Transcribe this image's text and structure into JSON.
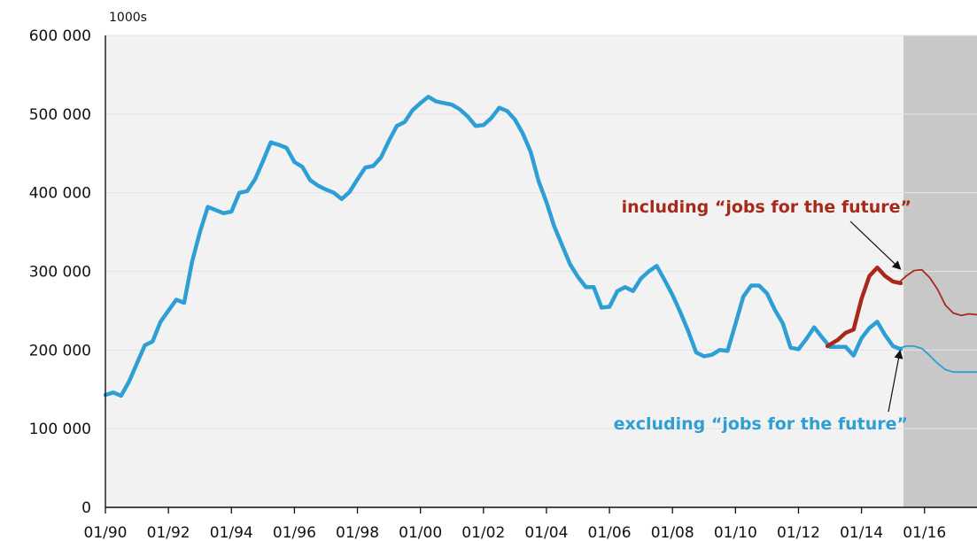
{
  "chart_data": {
    "type": "line",
    "unit_label": "1000s",
    "ylim": [
      0,
      600000
    ],
    "y_ticks": [
      0,
      100000,
      200000,
      300000,
      400000,
      500000,
      600000
    ],
    "y_tick_labels": [
      "0",
      "100 000",
      "200 000",
      "300 000",
      "400 000",
      "500 000",
      "600 000"
    ],
    "xlim": [
      "1990-01",
      "2017-09"
    ],
    "x_ticks": [
      "1990-01",
      "1992-01",
      "1994-01",
      "1996-01",
      "1998-01",
      "2000-01",
      "2002-01",
      "2004-01",
      "2006-01",
      "2008-01",
      "2010-01",
      "2012-01",
      "2014-01",
      "2016-01"
    ],
    "x_tick_labels": [
      "01/90",
      "01/92",
      "01/94",
      "01/96",
      "01/98",
      "01/00",
      "01/02",
      "01/04",
      "01/06",
      "01/08",
      "01/10",
      "01/12",
      "01/14",
      "01/16"
    ],
    "forecast_start": "2015-05",
    "grid": true,
    "colors": {
      "plot_background": "#f2f2f2",
      "forecast_shade": "#c8c8c8",
      "gridline": "#e4e4e4",
      "series_excluding": "#2e9fd4",
      "series_including": "#a8291b",
      "arrow": "#111111"
    },
    "series": [
      {
        "name": "excluding “jobs for the future”",
        "key": "excluding",
        "x": [
          "1990-01",
          "1990-04",
          "1990-07",
          "1990-10",
          "1991-01",
          "1991-04",
          "1991-07",
          "1991-10",
          "1992-01",
          "1992-04",
          "1992-07",
          "1992-10",
          "1993-01",
          "1993-04",
          "1993-07",
          "1993-10",
          "1994-01",
          "1994-04",
          "1994-07",
          "1994-10",
          "1995-01",
          "1995-04",
          "1995-07",
          "1995-10",
          "1996-01",
          "1996-04",
          "1996-07",
          "1996-10",
          "1997-01",
          "1997-04",
          "1997-07",
          "1997-10",
          "1998-01",
          "1998-04",
          "1998-07",
          "1998-10",
          "1999-01",
          "1999-04",
          "1999-07",
          "1999-10",
          "2000-01",
          "2000-04",
          "2000-07",
          "2000-10",
          "2001-01",
          "2001-04",
          "2001-07",
          "2001-10",
          "2002-01",
          "2002-04",
          "2002-07",
          "2002-10",
          "2003-01",
          "2003-04",
          "2003-07",
          "2003-10",
          "2004-01",
          "2004-04",
          "2004-07",
          "2004-10",
          "2005-01",
          "2005-04",
          "2005-07",
          "2005-10",
          "2006-01",
          "2006-04",
          "2006-07",
          "2006-10",
          "2007-01",
          "2007-04",
          "2007-07",
          "2007-10",
          "2008-01",
          "2008-04",
          "2008-07",
          "2008-10",
          "2009-01",
          "2009-04",
          "2009-07",
          "2009-10",
          "2010-01",
          "2010-04",
          "2010-07",
          "2010-10",
          "2011-01",
          "2011-04",
          "2011-07",
          "2011-10",
          "2012-01",
          "2012-04",
          "2012-07",
          "2012-10",
          "2013-01",
          "2013-04",
          "2013-07",
          "2013-10",
          "2014-01",
          "2014-04",
          "2014-07",
          "2014-10",
          "2015-01",
          "2015-04"
        ],
        "values": [
          143000,
          146000,
          142000,
          160000,
          183000,
          206000,
          211000,
          236000,
          250000,
          264000,
          260000,
          312000,
          350000,
          382000,
          378000,
          374000,
          376000,
          400000,
          402000,
          417000,
          440000,
          464000,
          461000,
          457000,
          439000,
          433000,
          416000,
          409000,
          404000,
          400000,
          392000,
          401000,
          417000,
          432000,
          434000,
          445000,
          466000,
          485000,
          490000,
          505000,
          514000,
          522000,
          516000,
          514000,
          512000,
          506000,
          497000,
          485000,
          486000,
          495000,
          508000,
          504000,
          493000,
          475000,
          452000,
          415000,
          388000,
          357000,
          333000,
          309000,
          293000,
          280000,
          280000,
          254000,
          255000,
          275000,
          280000,
          275000,
          291000,
          300000,
          307000,
          289000,
          270000,
          248000,
          224000,
          197000,
          192000,
          194000,
          200000,
          199000,
          233000,
          268000,
          282000,
          282000,
          272000,
          251000,
          234000,
          203000,
          201000,
          214000,
          229000,
          216000,
          204000,
          204000,
          204000,
          193000,
          215000,
          228000,
          236000,
          219000,
          205000,
          201000
        ]
      },
      {
        "name": "including “jobs for the future”",
        "key": "including",
        "x": [
          "2012-12",
          "2013-04",
          "2013-07",
          "2013-10",
          "2014-01",
          "2014-04",
          "2014-07",
          "2014-10",
          "2015-01",
          "2015-04"
        ],
        "values": [
          205000,
          213000,
          222000,
          226000,
          265000,
          294000,
          305000,
          294000,
          287000,
          285000
        ]
      }
    ],
    "forecast_series": [
      {
        "key": "excluding",
        "x": [
          "2015-04",
          "2015-06",
          "2015-09",
          "2015-12",
          "2016-03",
          "2016-06",
          "2016-09",
          "2016-12",
          "2017-03",
          "2017-06",
          "2017-09"
        ],
        "values": [
          203000,
          205000,
          205000,
          202000,
          193000,
          183000,
          175000,
          172000,
          172000,
          172000,
          172000
        ]
      },
      {
        "key": "including",
        "x": [
          "2015-04",
          "2015-06",
          "2015-09",
          "2015-12",
          "2016-03",
          "2016-06",
          "2016-09",
          "2016-12",
          "2017-03",
          "2017-06",
          "2017-09"
        ],
        "values": [
          288000,
          294000,
          301000,
          302000,
          292000,
          277000,
          257000,
          247000,
          244000,
          246000,
          245000
        ]
      }
    ],
    "annotations": [
      {
        "key": "including",
        "text": "including “jobs for the future”",
        "target_x": "2015-05",
        "target_y": 299000
      },
      {
        "key": "excluding",
        "text": "excluding “jobs for the future”",
        "target_x": "2015-05",
        "target_y": 205000
      }
    ]
  }
}
